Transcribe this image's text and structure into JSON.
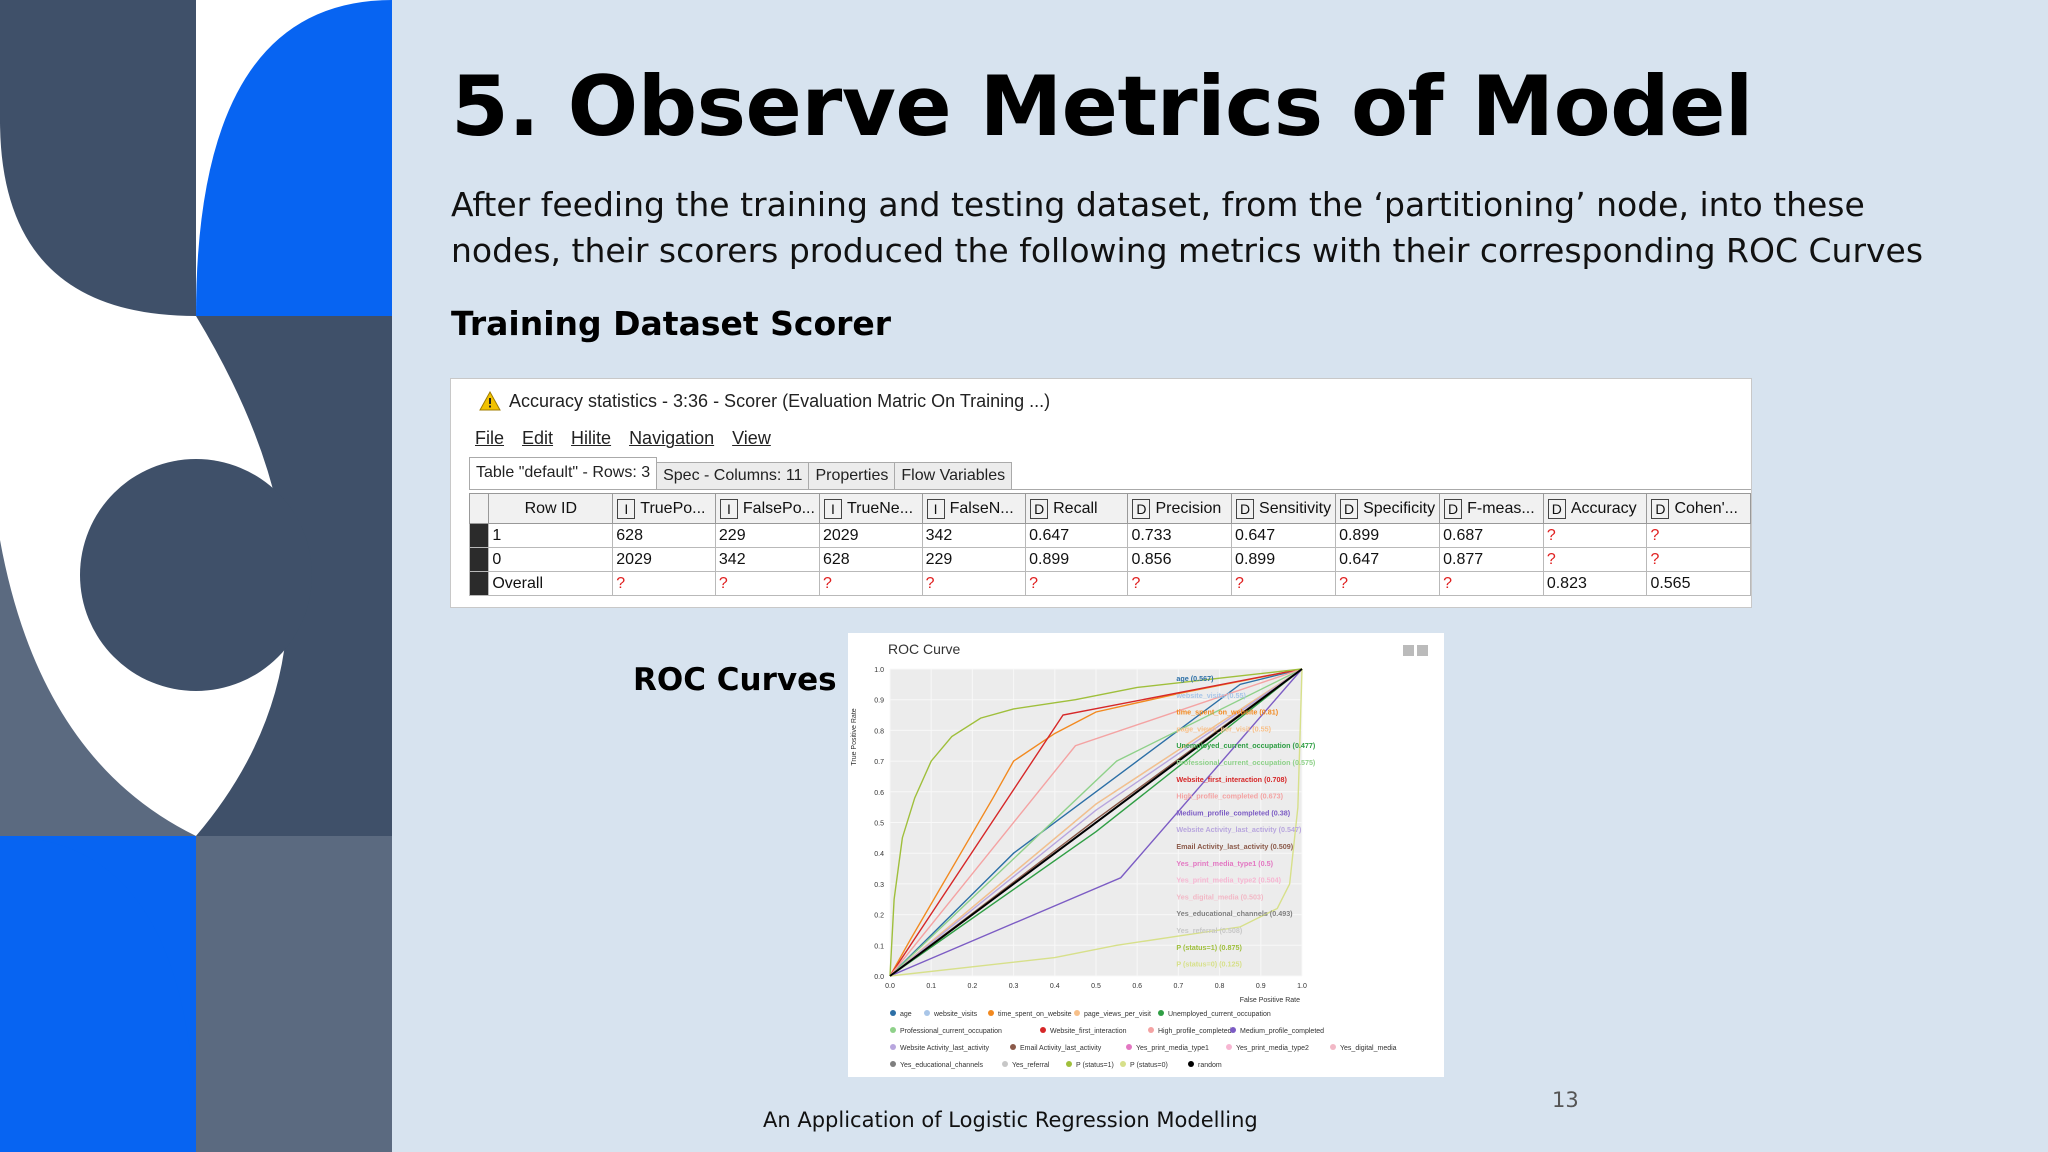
{
  "slide": {
    "title": "5. Observe Metrics of Model",
    "body": "After feeding the training and testing dataset, from the ‘partitioning’ node, into these nodes, their scorers produced the following metrics with their corresponding ROC Curves",
    "section_heading": "Training Dataset Scorer",
    "roc_label": "ROC Curves",
    "page_number": "13",
    "footer": "An Application of Logistic Regression Modelling"
  },
  "colors": {
    "background": "#d7e3ef",
    "navy": "#3f5069",
    "slate": "#5b6a80",
    "blue": "#0764f2",
    "white": "#ffffff"
  },
  "window": {
    "title": "Accuracy statistics - 3:36 - Scorer (Evaluation Matric On Training ...)",
    "warning_icon": "warning-triangle-icon",
    "menu": [
      "File",
      "Edit",
      "Hilite",
      "Navigation",
      "View"
    ],
    "tabs": [
      "Table \"default\" - Rows: 3",
      "Spec - Columns: 11",
      "Properties",
      "Flow Variables"
    ],
    "columns": [
      {
        "type": "",
        "label": "Row ID"
      },
      {
        "type": "I",
        "label": "TruePo..."
      },
      {
        "type": "I",
        "label": "FalsePo..."
      },
      {
        "type": "I",
        "label": "TrueNe..."
      },
      {
        "type": "I",
        "label": "FalseN..."
      },
      {
        "type": "D",
        "label": "Recall"
      },
      {
        "type": "D",
        "label": "Precision"
      },
      {
        "type": "D",
        "label": "Sensitivity"
      },
      {
        "type": "D",
        "label": "Specificity"
      },
      {
        "type": "D",
        "label": "F-meas..."
      },
      {
        "type": "D",
        "label": "Accuracy"
      },
      {
        "type": "D",
        "label": "Cohen'..."
      }
    ],
    "rows": [
      [
        "1",
        "628",
        "229",
        "2029",
        "342",
        "0.647",
        "0.733",
        "0.647",
        "0.899",
        "0.687",
        "?",
        "?"
      ],
      [
        "0",
        "2029",
        "342",
        "628",
        "229",
        "0.899",
        "0.856",
        "0.899",
        "0.647",
        "0.877",
        "?",
        "?"
      ],
      [
        "Overall",
        "?",
        "?",
        "?",
        "?",
        "?",
        "?",
        "?",
        "?",
        "?",
        "0.823",
        "0.565"
      ]
    ]
  },
  "chart_data": {
    "type": "line",
    "title": "ROC Curve",
    "xlabel": "False Positive Rate",
    "ylabel": "True Positive Rate",
    "xlim": [
      0,
      1
    ],
    "ylim": [
      0,
      1
    ],
    "ticks": [
      "0.0",
      "0.1",
      "0.2",
      "0.3",
      "0.4",
      "0.5",
      "0.6",
      "0.7",
      "0.8",
      "0.9",
      "1.0"
    ],
    "series": [
      {
        "name": "age",
        "auc": "age (0.567)",
        "color": "#2c6fa6",
        "x": [
          0,
          0.3,
          0.6,
          0.85,
          1
        ],
        "y": [
          0,
          0.4,
          0.7,
          0.95,
          1
        ]
      },
      {
        "name": "website_visits",
        "auc": "website_visits (0.55)",
        "color": "#a9c6e8",
        "x": [
          0,
          0.5,
          1
        ],
        "y": [
          0,
          0.56,
          1
        ]
      },
      {
        "name": "time_spent_on_website",
        "auc": "time_spent_on_website (0.81)",
        "color": "#f2891f",
        "x": [
          0,
          0.05,
          0.15,
          0.25,
          0.3,
          0.4,
          0.5,
          0.7,
          1
        ],
        "y": [
          0,
          0.12,
          0.35,
          0.58,
          0.7,
          0.79,
          0.86,
          0.92,
          1
        ]
      },
      {
        "name": "page_views_per_visit",
        "auc": "page_views_per_visit (0.55)",
        "color": "#f7c08a",
        "x": [
          0,
          0.5,
          1
        ],
        "y": [
          0,
          0.56,
          1
        ]
      },
      {
        "name": "Unemployed_current_occupation",
        "auc": "Unemployed_current_occupation (0.477)",
        "color": "#2f9e44",
        "x": [
          0,
          0.5,
          1
        ],
        "y": [
          0,
          0.47,
          1
        ]
      },
      {
        "name": "Professional_current_occupation",
        "auc": "Professional_current_occupation (0.575)",
        "color": "#8fd18a",
        "x": [
          0,
          0.55,
          1
        ],
        "y": [
          0,
          0.7,
          1
        ]
      },
      {
        "name": "Website_first_interaction",
        "auc": "Website_first_interaction (0.708)",
        "color": "#d62728",
        "x": [
          0,
          0.42,
          1
        ],
        "y": [
          0,
          0.85,
          1
        ]
      },
      {
        "name": "High_profile_completed",
        "auc": "High_profile_completed (0.673)",
        "color": "#f4a3a3",
        "x": [
          0,
          0.45,
          1
        ],
        "y": [
          0,
          0.75,
          1
        ]
      },
      {
        "name": "Medium_profile_completed",
        "auc": "Medium_profile_completed (0.38)",
        "color": "#7c5cc4",
        "x": [
          0,
          0.56,
          1
        ],
        "y": [
          0,
          0.32,
          1
        ]
      },
      {
        "name": "Website Activity_last_activity",
        "auc": "Website Activity_last_activity (0.547)",
        "color": "#b8a6de",
        "x": [
          0,
          0.5,
          1
        ],
        "y": [
          0,
          0.54,
          1
        ]
      },
      {
        "name": "Email Activity_last_activity",
        "auc": "Email Activity_last_activity (0.509)",
        "color": "#8b5a4a",
        "x": [
          0,
          0.5,
          1
        ],
        "y": [
          0,
          0.51,
          1
        ]
      },
      {
        "name": "Yes_print_media_type1",
        "auc": "Yes_print_media_type1 (0.5)",
        "color": "#e377c2",
        "x": [
          0,
          1
        ],
        "y": [
          0,
          1
        ]
      },
      {
        "name": "Yes_print_media_type2",
        "auc": "Yes_print_media_type2 (0.504)",
        "color": "#f7b6d2",
        "x": [
          0,
          1
        ],
        "y": [
          0,
          1
        ]
      },
      {
        "name": "Yes_digital_media",
        "auc": "Yes_digital_media (0.503)",
        "color": "#f2b8c6",
        "x": [
          0,
          1
        ],
        "y": [
          0,
          1
        ]
      },
      {
        "name": "Yes_educational_channels",
        "auc": "Yes_educational_channels (0.493)",
        "color": "#7f7f7f",
        "x": [
          0,
          1
        ],
        "y": [
          0,
          1
        ]
      },
      {
        "name": "Yes_referral",
        "auc": "Yes_referral (0.508)",
        "color": "#c7c7c7",
        "x": [
          0,
          1
        ],
        "y": [
          0,
          1
        ]
      },
      {
        "name": "P (status=1)",
        "auc": "P (status=1) (0.875)",
        "color": "#9fbf3b",
        "x": [
          0,
          0.01,
          0.03,
          0.06,
          0.1,
          0.15,
          0.22,
          0.3,
          0.45,
          0.6,
          0.8,
          1
        ],
        "y": [
          0,
          0.25,
          0.45,
          0.58,
          0.7,
          0.78,
          0.84,
          0.87,
          0.9,
          0.94,
          0.97,
          1
        ]
      },
      {
        "name": "P (status=0)",
        "auc": "P (status=0) (0.125)",
        "color": "#d7e08a",
        "x": [
          0,
          0.2,
          0.4,
          0.55,
          0.7,
          0.85,
          0.94,
          0.97,
          0.99,
          1
        ],
        "y": [
          0,
          0.03,
          0.06,
          0.1,
          0.13,
          0.16,
          0.22,
          0.3,
          0.55,
          1
        ]
      },
      {
        "name": "random",
        "auc": "random",
        "color": "#000000",
        "x": [
          0,
          1
        ],
        "y": [
          0,
          1
        ]
      }
    ]
  }
}
